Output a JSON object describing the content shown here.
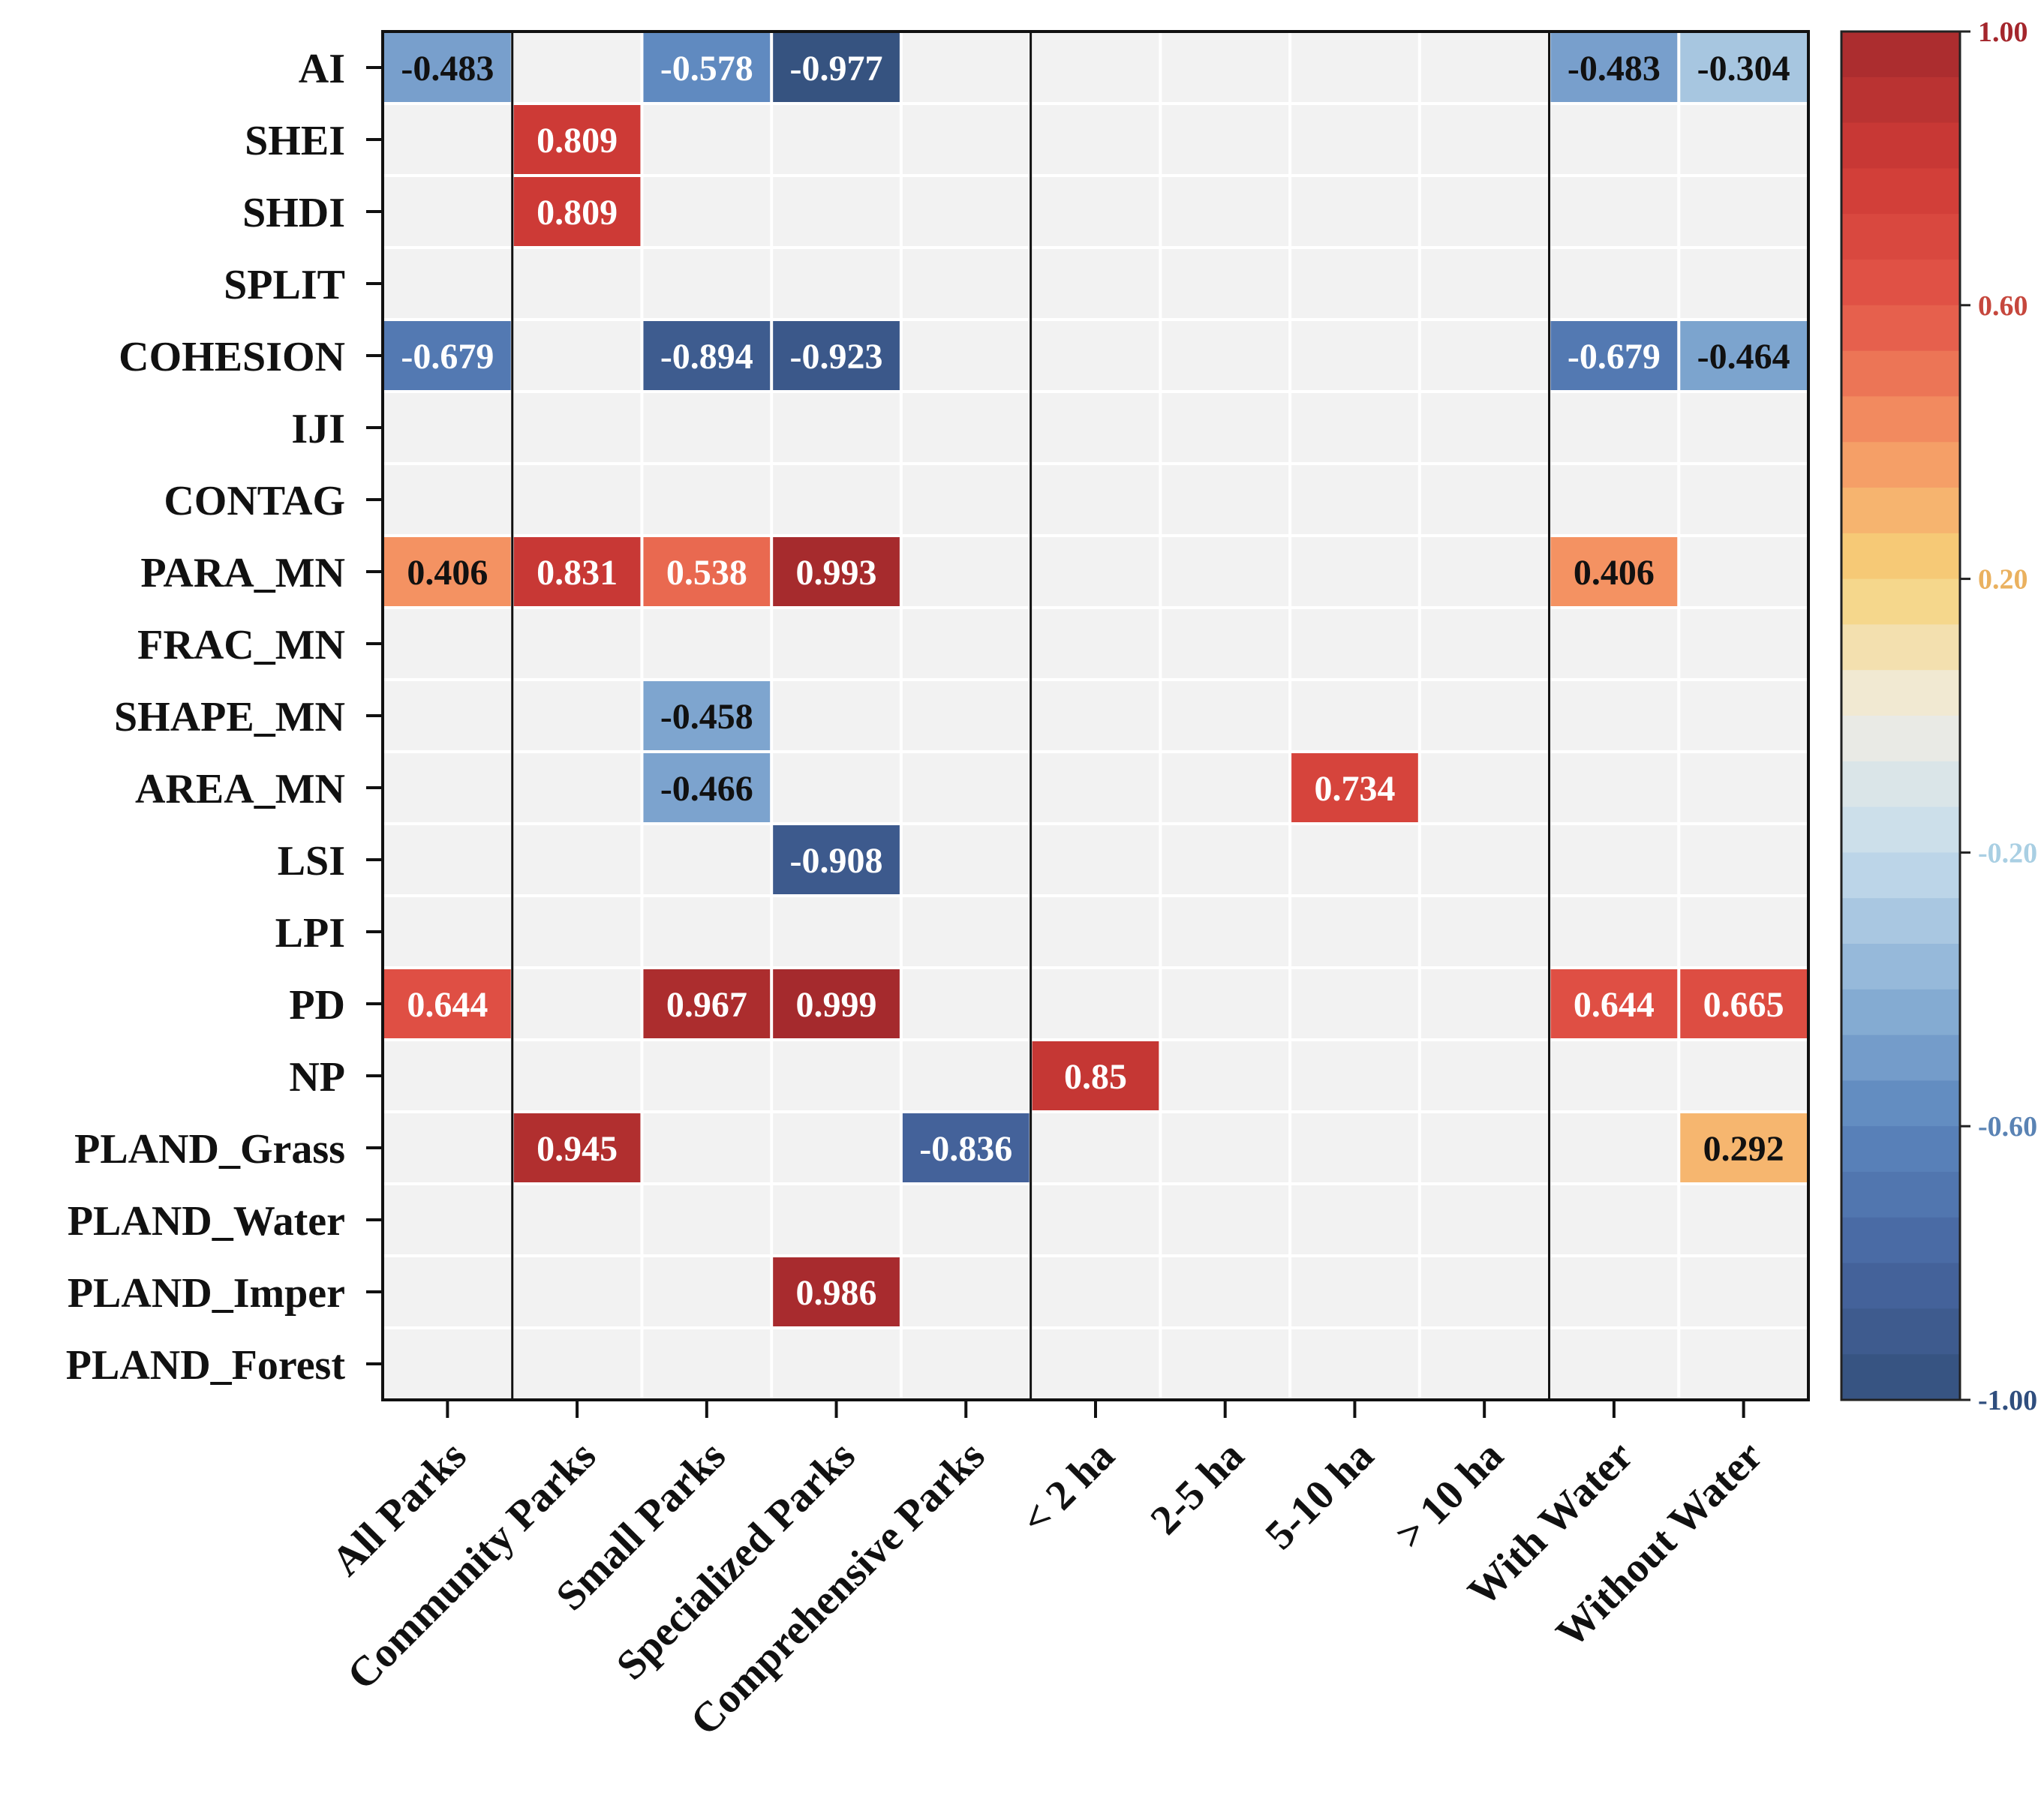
{
  "chart_data": {
    "type": "heatmap",
    "title": "",
    "xlabel": "",
    "ylabel": "",
    "rows": [
      "AI",
      "SHEI",
      "SHDI",
      "SPLIT",
      "COHESION",
      "IJI",
      "CONTAG",
      "PARA_MN",
      "FRAC_MN",
      "SHAPE_MN",
      "AREA_MN",
      "LSI",
      "LPI",
      "PD",
      "NP",
      "PLAND_Grass",
      "PLAND_Water",
      "PLAND_Imper",
      "PLAND_Forest"
    ],
    "columns": [
      "All Parks",
      "Community Parks",
      "Small Parks",
      "Specialized Parks",
      "Comprehensive Parks",
      "< 2 ha",
      "2-5 ha",
      "5-10 ha",
      "> 10 ha",
      "With Water",
      "Without Water"
    ],
    "group_separators_after_column": [
      "All Parks",
      "Comprehensive Parks",
      "> 10 ha"
    ],
    "values": [
      [
        -0.483,
        null,
        -0.578,
        -0.977,
        null,
        null,
        null,
        null,
        null,
        -0.483,
        -0.304
      ],
      [
        null,
        0.809,
        null,
        null,
        null,
        null,
        null,
        null,
        null,
        null,
        null
      ],
      [
        null,
        0.809,
        null,
        null,
        null,
        null,
        null,
        null,
        null,
        null,
        null
      ],
      [
        null,
        null,
        null,
        null,
        null,
        null,
        null,
        null,
        null,
        null,
        null
      ],
      [
        -0.679,
        null,
        -0.894,
        -0.923,
        null,
        null,
        null,
        null,
        null,
        -0.679,
        -0.464
      ],
      [
        null,
        null,
        null,
        null,
        null,
        null,
        null,
        null,
        null,
        null,
        null
      ],
      [
        null,
        null,
        null,
        null,
        null,
        null,
        null,
        null,
        null,
        null,
        null
      ],
      [
        0.406,
        0.831,
        0.538,
        0.993,
        null,
        null,
        null,
        null,
        null,
        0.406,
        null
      ],
      [
        null,
        null,
        null,
        null,
        null,
        null,
        null,
        null,
        null,
        null,
        null
      ],
      [
        null,
        null,
        -0.458,
        null,
        null,
        null,
        null,
        null,
        null,
        null,
        null
      ],
      [
        null,
        null,
        -0.466,
        null,
        null,
        null,
        null,
        0.734,
        null,
        null,
        null
      ],
      [
        null,
        null,
        null,
        -0.908,
        null,
        null,
        null,
        null,
        null,
        null,
        null
      ],
      [
        null,
        null,
        null,
        null,
        null,
        null,
        null,
        null,
        null,
        null,
        null
      ],
      [
        0.644,
        null,
        0.967,
        0.999,
        null,
        null,
        null,
        null,
        null,
        0.644,
        0.665
      ],
      [
        null,
        null,
        null,
        null,
        null,
        0.85,
        null,
        null,
        null,
        null,
        null
      ],
      [
        null,
        0.945,
        null,
        null,
        -0.836,
        null,
        null,
        null,
        null,
        null,
        0.292
      ],
      [
        null,
        null,
        null,
        null,
        null,
        null,
        null,
        null,
        null,
        null,
        null
      ],
      [
        null,
        null,
        null,
        0.986,
        null,
        null,
        null,
        null,
        null,
        null,
        null
      ],
      [
        null,
        null,
        null,
        null,
        null,
        null,
        null,
        null,
        null,
        null,
        null
      ]
    ],
    "value_labels": [
      [
        "-0.483",
        "",
        "-0.578",
        "-0.977",
        "",
        "",
        "",
        "",
        "",
        "-0.483",
        "-0.304"
      ],
      [
        "",
        "0.809",
        "",
        "",
        "",
        "",
        "",
        "",
        "",
        "",
        ""
      ],
      [
        "",
        "0.809",
        "",
        "",
        "",
        "",
        "",
        "",
        "",
        "",
        ""
      ],
      [
        "",
        "",
        "",
        "",
        "",
        "",
        "",
        "",
        "",
        "",
        ""
      ],
      [
        "-0.679",
        "",
        "-0.894",
        "-0.923",
        "",
        "",
        "",
        "",
        "",
        "-0.679",
        "-0.464"
      ],
      [
        "",
        "",
        "",
        "",
        "",
        "",
        "",
        "",
        "",
        "",
        ""
      ],
      [
        "",
        "",
        "",
        "",
        "",
        "",
        "",
        "",
        "",
        "",
        ""
      ],
      [
        "0.406",
        "0.831",
        "0.538",
        "0.993",
        "",
        "",
        "",
        "",
        "",
        "0.406",
        ""
      ],
      [
        "",
        "",
        "",
        "",
        "",
        "",
        "",
        "",
        "",
        "",
        ""
      ],
      [
        "",
        "",
        "-0.458",
        "",
        "",
        "",
        "",
        "",
        "",
        "",
        ""
      ],
      [
        "",
        "",
        "-0.466",
        "",
        "",
        "",
        "",
        "0.734",
        "",
        "",
        ""
      ],
      [
        "",
        "",
        "",
        "-0.908",
        "",
        "",
        "",
        "",
        "",
        "",
        ""
      ],
      [
        "",
        "",
        "",
        "",
        "",
        "",
        "",
        "",
        "",
        "",
        ""
      ],
      [
        "0.644",
        "",
        "0.967",
        "0.999",
        "",
        "",
        "",
        "",
        "",
        "0.644",
        "0.665"
      ],
      [
        "",
        "",
        "",
        "",
        "",
        "0.85",
        "",
        "",
        "",
        "",
        ""
      ],
      [
        "",
        "0.945",
        "",
        "",
        "-0.836",
        "",
        "",
        "",
        "",
        "",
        "0.292"
      ],
      [
        "",
        "",
        "",
        "",
        "",
        "",
        "",
        "",
        "",
        "",
        ""
      ],
      [
        "",
        "",
        "",
        "0.986",
        "",
        "",
        "",
        "",
        "",
        "",
        ""
      ],
      [
        "",
        "",
        "",
        "",
        "",
        "",
        "",
        "",
        "",
        "",
        ""
      ]
    ],
    "colorbar": {
      "range": [
        -1,
        1
      ],
      "ticks": [
        "1.00",
        "0.60",
        "0.20",
        "-0.20",
        "-0.60",
        "-1.00"
      ],
      "tick_values": [
        1,
        0.6,
        0.2,
        -0.2,
        -0.6,
        -1
      ],
      "tick_colors": [
        "#a4262c",
        "#c6473d",
        "#eab15f",
        "#a9cfe3",
        "#5a83b4",
        "#2f4e7e"
      ],
      "color_stops": [
        {
          "value": -1.0,
          "color": "#34507c"
        },
        {
          "value": -0.8,
          "color": "#4766a0"
        },
        {
          "value": -0.6,
          "color": "#5b85bd"
        },
        {
          "value": -0.4,
          "color": "#8cb2d6"
        },
        {
          "value": -0.2,
          "color": "#c5dceb"
        },
        {
          "value": 0.0,
          "color": "#f0ede4"
        },
        {
          "value": 0.2,
          "color": "#f6d37a"
        },
        {
          "value": 0.4,
          "color": "#f59463"
        },
        {
          "value": 0.6,
          "color": "#e35548"
        },
        {
          "value": 0.8,
          "color": "#cf3b36"
        },
        {
          "value": 1.0,
          "color": "#a52a2d"
        }
      ]
    },
    "empty_cell_color": "#f2f2f2",
    "grid_line_color": "#ffffff",
    "frame_color": "#111111"
  }
}
